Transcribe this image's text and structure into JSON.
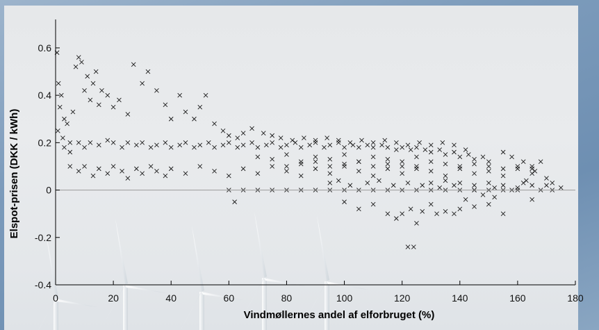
{
  "chart_data": {
    "type": "scatter",
    "title": "",
    "xlabel": "Vindmøllernes andel af elforbruget  (%)",
    "ylabel": "Elspot-prisen  (DKK / kWh)",
    "xlim": [
      0,
      180
    ],
    "ylim": [
      -0.4,
      0.72
    ],
    "xticks": [
      0,
      20,
      40,
      60,
      80,
      100,
      120,
      140,
      160,
      180
    ],
    "yticks": [
      -0.4,
      -0.2,
      0,
      0.2,
      0.4,
      0.6
    ],
    "xtick_labels": [
      "0",
      "20",
      "40",
      "60",
      "80",
      "100",
      "120",
      "140",
      "160",
      "180"
    ],
    "ytick_labels": [
      "-0.4",
      "-0.2",
      "0",
      "0.2",
      "0.4",
      "0.6"
    ],
    "marker": "x",
    "marker_color": "#1a1a1a",
    "zero_line": true,
    "grid": false,
    "background": "photo of wind turbines under an overcast sky",
    "series": [
      {
        "points": [
          [
            0.5,
            0.58
          ],
          [
            1,
            0.45
          ],
          [
            2,
            0.4
          ],
          [
            1.5,
            0.35
          ],
          [
            3,
            0.3
          ],
          [
            0.8,
            0.25
          ],
          [
            2.5,
            0.22
          ],
          [
            4,
            0.28
          ],
          [
            5,
            0.2
          ],
          [
            6,
            0.33
          ],
          [
            7,
            0.52
          ],
          [
            8,
            0.56
          ],
          [
            9,
            0.54
          ],
          [
            10,
            0.42
          ],
          [
            11,
            0.48
          ],
          [
            12,
            0.38
          ],
          [
            13,
            0.45
          ],
          [
            14,
            0.5
          ],
          [
            15,
            0.36
          ],
          [
            16,
            0.42
          ],
          [
            18,
            0.4
          ],
          [
            20,
            0.35
          ],
          [
            22,
            0.38
          ],
          [
            25,
            0.32
          ],
          [
            27,
            0.53
          ],
          [
            30,
            0.45
          ],
          [
            32,
            0.5
          ],
          [
            35,
            0.42
          ],
          [
            38,
            0.36
          ],
          [
            40,
            0.3
          ],
          [
            43,
            0.4
          ],
          [
            45,
            0.33
          ],
          [
            48,
            0.3
          ],
          [
            50,
            0.35
          ],
          [
            52,
            0.4
          ],
          [
            55,
            0.28
          ],
          [
            58,
            0.25
          ],
          [
            60,
            0.23
          ],
          [
            63,
            0.22
          ],
          [
            65,
            0.24
          ],
          [
            3,
            0.18
          ],
          [
            5,
            0.16
          ],
          [
            8,
            0.2
          ],
          [
            10,
            0.18
          ],
          [
            12,
            0.2
          ],
          [
            15,
            0.19
          ],
          [
            18,
            0.21
          ],
          [
            20,
            0.2
          ],
          [
            23,
            0.18
          ],
          [
            25,
            0.2
          ],
          [
            28,
            0.19
          ],
          [
            30,
            0.2
          ],
          [
            33,
            0.18
          ],
          [
            35,
            0.19
          ],
          [
            38,
            0.2
          ],
          [
            40,
            0.18
          ],
          [
            43,
            0.19
          ],
          [
            45,
            0.2
          ],
          [
            48,
            0.18
          ],
          [
            50,
            0.19
          ],
          [
            53,
            0.2
          ],
          [
            55,
            0.18
          ],
          [
            58,
            0.19
          ],
          [
            60,
            0.2
          ],
          [
            63,
            0.18
          ],
          [
            65,
            0.19
          ],
          [
            68,
            0.2
          ],
          [
            70,
            0.18
          ],
          [
            73,
            0.19
          ],
          [
            75,
            0.2
          ],
          [
            78,
            0.18
          ],
          [
            80,
            0.19
          ],
          [
            83,
            0.2
          ],
          [
            85,
            0.18
          ],
          [
            88,
            0.19
          ],
          [
            90,
            0.2
          ],
          [
            93,
            0.18
          ],
          [
            95,
            0.19
          ],
          [
            98,
            0.2
          ],
          [
            100,
            0.18
          ],
          [
            103,
            0.19
          ],
          [
            105,
            0.18
          ],
          [
            108,
            0.19
          ],
          [
            110,
            0.18
          ],
          [
            113,
            0.19
          ],
          [
            115,
            0.18
          ],
          [
            118,
            0.17
          ],
          [
            120,
            0.18
          ],
          [
            123,
            0.17
          ],
          [
            125,
            0.18
          ],
          [
            128,
            0.17
          ],
          [
            130,
            0.16
          ],
          [
            133,
            0.17
          ],
          [
            135,
            0.15
          ],
          [
            138,
            0.16
          ],
          [
            140,
            0.14
          ],
          [
            143,
            0.15
          ],
          [
            145,
            0.13
          ],
          [
            148,
            0.14
          ],
          [
            150,
            0.12
          ],
          [
            5,
            0.1
          ],
          [
            8,
            0.08
          ],
          [
            10,
            0.1
          ],
          [
            13,
            0.06
          ],
          [
            15,
            0.09
          ],
          [
            18,
            0.07
          ],
          [
            20,
            0.1
          ],
          [
            23,
            0.08
          ],
          [
            25,
            0.05
          ],
          [
            28,
            0.09
          ],
          [
            30,
            0.07
          ],
          [
            33,
            0.1
          ],
          [
            35,
            0.08
          ],
          [
            38,
            0.06
          ],
          [
            40,
            0.09
          ],
          [
            45,
            0.07
          ],
          [
            50,
            0.1
          ],
          [
            55,
            0.08
          ],
          [
            60,
            0.06
          ],
          [
            65,
            0.09
          ],
          [
            70,
            0.07
          ],
          [
            75,
            0.1
          ],
          [
            80,
            0.08
          ],
          [
            85,
            0.06
          ],
          [
            90,
            0.09
          ],
          [
            95,
            0.07
          ],
          [
            100,
            0.1
          ],
          [
            105,
            0.08
          ],
          [
            110,
            0.06
          ],
          [
            115,
            0.09
          ],
          [
            120,
            0.07
          ],
          [
            125,
            0.1
          ],
          [
            130,
            0.08
          ],
          [
            135,
            0.06
          ],
          [
            140,
            0.09
          ],
          [
            145,
            0.07
          ],
          [
            150,
            0.08
          ],
          [
            155,
            0.06
          ],
          [
            160,
            0.09
          ],
          [
            165,
            0.07
          ],
          [
            70,
            0.14
          ],
          [
            75,
            0.13
          ],
          [
            80,
            0.15
          ],
          [
            85,
            0.12
          ],
          [
            90,
            0.14
          ],
          [
            95,
            0.13
          ],
          [
            100,
            0.15
          ],
          [
            105,
            0.12
          ],
          [
            110,
            0.14
          ],
          [
            115,
            0.13
          ],
          [
            120,
            0.12
          ],
          [
            125,
            0.14
          ],
          [
            130,
            0.12
          ],
          [
            135,
            0.11
          ],
          [
            140,
            0.1
          ],
          [
            145,
            0.11
          ],
          [
            150,
            0.1
          ],
          [
            155,
            0.09
          ],
          [
            160,
            0.1
          ],
          [
            165,
            0.09
          ],
          [
            155,
            0.16
          ],
          [
            158,
            0.14
          ],
          [
            162,
            0.12
          ],
          [
            165,
            0.1
          ],
          [
            168,
            0.12
          ],
          [
            170,
            0.05
          ],
          [
            172,
            0.03
          ],
          [
            175,
            0.01
          ],
          [
            168,
            0.0
          ],
          [
            165,
            0.02
          ],
          [
            130,
            0.03
          ],
          [
            135,
            0.04
          ],
          [
            140,
            0.03
          ],
          [
            145,
            0.02
          ],
          [
            150,
            0.03
          ],
          [
            155,
            0.02
          ],
          [
            160,
            0.01
          ],
          [
            162,
            0.03
          ],
          [
            158,
            0.0
          ],
          [
            152,
            0.01
          ],
          [
            60,
            0.0
          ],
          [
            65,
            0.0
          ],
          [
            70,
            0.0
          ],
          [
            75,
            0.0
          ],
          [
            80,
            0.0
          ],
          [
            85,
            0.0
          ],
          [
            90,
            0.0
          ],
          [
            95,
            0.0
          ],
          [
            100,
            0.0
          ],
          [
            105,
            0.0
          ],
          [
            110,
            0.0
          ],
          [
            115,
            0.0
          ],
          [
            120,
            0.0
          ],
          [
            125,
            0.0
          ],
          [
            130,
            0.0
          ],
          [
            135,
            0.0
          ],
          [
            140,
            0.0
          ],
          [
            145,
            0.0
          ],
          [
            150,
            0.0
          ],
          [
            155,
            0.0
          ],
          [
            62,
            -0.05
          ],
          [
            100,
            -0.05
          ],
          [
            105,
            -0.08
          ],
          [
            110,
            -0.06
          ],
          [
            115,
            -0.1
          ],
          [
            118,
            -0.12
          ],
          [
            120,
            -0.1
          ],
          [
            123,
            -0.08
          ],
          [
            125,
            -0.14
          ],
          [
            127,
            -0.09
          ],
          [
            130,
            -0.06
          ],
          [
            132,
            -0.1
          ],
          [
            135,
            -0.09
          ],
          [
            138,
            -0.1
          ],
          [
            140,
            -0.08
          ],
          [
            145,
            -0.07
          ],
          [
            150,
            -0.06
          ],
          [
            155,
            -0.1
          ],
          [
            165,
            -0.04
          ],
          [
            170,
            0.02
          ],
          [
            95,
            0.03
          ],
          [
            98,
            0.04
          ],
          [
            102,
            0.02
          ],
          [
            108,
            0.03
          ],
          [
            112,
            0.04
          ],
          [
            117,
            0.02
          ],
          [
            122,
            0.03
          ],
          [
            127,
            0.02
          ],
          [
            133,
            0.01
          ],
          [
            138,
            0.02
          ],
          [
            122,
            -0.24
          ],
          [
            124,
            -0.24
          ],
          [
            142,
            -0.04
          ],
          [
            145,
            0.0
          ],
          [
            148,
            -0.02
          ],
          [
            152,
            -0.03
          ],
          [
            160,
            0.0
          ],
          [
            163,
            0.04
          ],
          [
            166,
            0.08
          ],
          [
            172,
            0.0
          ],
          [
            80,
            0.1
          ],
          [
            85,
            0.11
          ],
          [
            90,
            0.12
          ],
          [
            95,
            0.1
          ],
          [
            100,
            0.11
          ],
          [
            105,
            0.12
          ],
          [
            110,
            0.1
          ],
          [
            115,
            0.11
          ],
          [
            120,
            0.1
          ],
          [
            125,
            0.09
          ],
          [
            68,
            0.26
          ],
          [
            72,
            0.24
          ],
          [
            75,
            0.23
          ],
          [
            78,
            0.22
          ],
          [
            82,
            0.21
          ],
          [
            86,
            0.22
          ],
          [
            90,
            0.21
          ],
          [
            94,
            0.22
          ],
          [
            98,
            0.21
          ],
          [
            102,
            0.2
          ],
          [
            106,
            0.21
          ],
          [
            110,
            0.2
          ],
          [
            114,
            0.21
          ],
          [
            118,
            0.2
          ],
          [
            122,
            0.19
          ],
          [
            126,
            0.2
          ],
          [
            130,
            0.19
          ],
          [
            134,
            0.2
          ],
          [
            138,
            0.19
          ],
          [
            142,
            0.17
          ]
        ]
      }
    ]
  }
}
